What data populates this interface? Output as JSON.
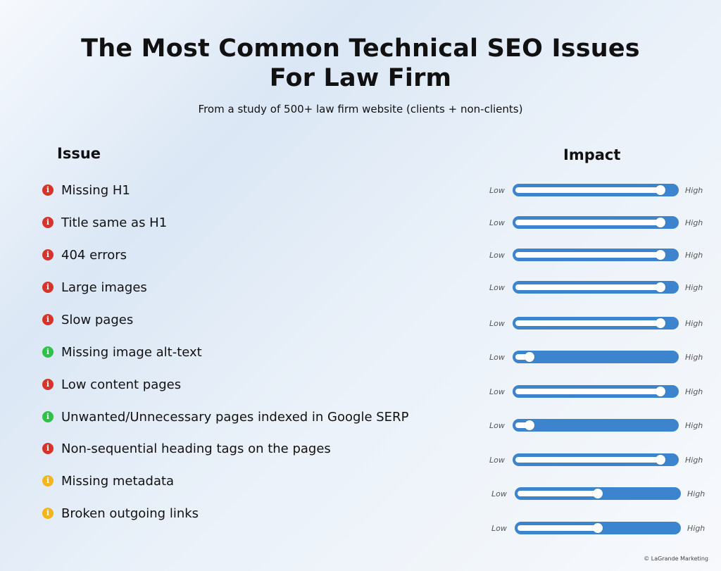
{
  "header": {
    "title_line1": "The Most Common Technical SEO Issues",
    "title_line2": "For Law Firm",
    "subtitle": "From a study of 500+ law firm website (clients + non-clients)"
  },
  "columns": {
    "issue": "Issue",
    "impact": "Impact"
  },
  "scale": {
    "low": "Low",
    "high": "High"
  },
  "colors": {
    "red": "#d8332a",
    "green": "#2ec24a",
    "yellow": "#f2b51b",
    "track": "#3c84cd"
  },
  "issues": [
    {
      "label": "Missing H1",
      "severity": "red",
      "icon": "info-icon",
      "impact": 0.93
    },
    {
      "label": "Title same as H1",
      "severity": "red",
      "icon": "info-icon",
      "impact": 0.93
    },
    {
      "label": "404 errors",
      "severity": "red",
      "icon": "info-icon",
      "impact": 0.93
    },
    {
      "label": "Large images",
      "severity": "red",
      "icon": "info-icon",
      "impact": 0.93
    },
    {
      "label": "Slow pages",
      "severity": "red",
      "icon": "info-icon",
      "impact": 0.93
    },
    {
      "label": "Missing image alt-text",
      "severity": "green",
      "icon": "info-icon",
      "impact": 0.06
    },
    {
      "label": "Low content pages",
      "severity": "red",
      "icon": "info-icon",
      "impact": 0.93
    },
    {
      "label": "Unwanted/Unnecessary pages indexed in Google SERP",
      "severity": "green",
      "icon": "info-icon",
      "impact": 0.06
    },
    {
      "label": "Non-sequential heading tags on the pages",
      "severity": "red",
      "icon": "info-icon",
      "impact": 0.93
    },
    {
      "label": "Missing metadata",
      "severity": "yellow",
      "icon": "info-icon",
      "impact": 0.5
    },
    {
      "label": "Broken outgoing links",
      "severity": "yellow",
      "icon": "info-icon",
      "impact": 0.5
    }
  ],
  "footer": {
    "copyright": "© LaGrande Marketing"
  }
}
